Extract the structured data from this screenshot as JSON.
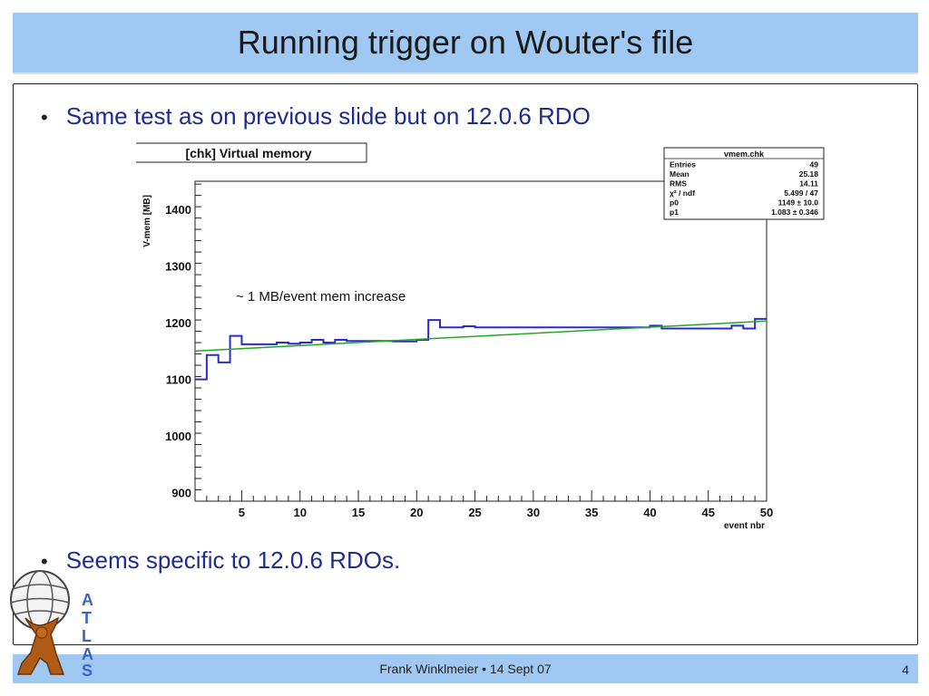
{
  "slide": {
    "title": "Running trigger on Wouter's file",
    "bullets": [
      "Same test as on previous slide but on 12.0.6 RDO",
      "Seems specific to 12.0.6 RDOs."
    ],
    "footer": "Frank Winklmeier • 14 Sept 07",
    "page_number": "4",
    "logo_text": "ATLAS"
  },
  "chart_data": {
    "type": "line",
    "title": "[chk] Virtual memory",
    "xlabel": "event nbr",
    "ylabel": "V-mem [MB]",
    "xlim": [
      1,
      50
    ],
    "ylim": [
      885,
      1450
    ],
    "xticks": [
      5,
      10,
      15,
      20,
      25,
      30,
      35,
      40,
      45,
      50
    ],
    "yticks": [
      900,
      1000,
      1100,
      1200,
      1300,
      1400
    ],
    "annotation": "~ 1 MB/event mem increase",
    "series": [
      {
        "kind": "step",
        "color": "#2b2bd6",
        "x": [
          1,
          2,
          3,
          4,
          5,
          6,
          7,
          8,
          9,
          10,
          11,
          12,
          13,
          14,
          15,
          16,
          17,
          18,
          19,
          20,
          21,
          22,
          23,
          24,
          25,
          26,
          27,
          28,
          29,
          30,
          31,
          32,
          33,
          34,
          35,
          36,
          37,
          38,
          39,
          40,
          41,
          42,
          43,
          44,
          45,
          46,
          47,
          48,
          49,
          50
        ],
        "values": [
          1100,
          1143,
          1130,
          1177,
          1162,
          1162,
          1162,
          1165,
          1163,
          1165,
          1170,
          1165,
          1170,
          1168,
          1168,
          1168,
          1168,
          1167,
          1167,
          1170,
          1205,
          1192,
          1192,
          1194,
          1192,
          1192,
          1192,
          1192,
          1192,
          1192,
          1192,
          1192,
          1192,
          1192,
          1192,
          1192,
          1192,
          1192,
          1192,
          1195,
          1190,
          1190,
          1190,
          1190,
          1190,
          1190,
          1195,
          1190,
          1207,
          1207
        ]
      },
      {
        "kind": "fit",
        "color": "#22a822",
        "x": [
          1,
          50
        ],
        "values": [
          1150.1,
          1203.1
        ]
      }
    ],
    "stats": {
      "name": "vmem.chk",
      "rows": [
        {
          "label": "Entries",
          "value": "49"
        },
        {
          "label": "Mean",
          "value": "25.18"
        },
        {
          "label": "RMS",
          "value": "14.11"
        },
        {
          "label": "χ² / ndf",
          "value": "5.499 / 47"
        },
        {
          "label": "p0",
          "value": "1149 ± 10.0"
        },
        {
          "label": "p1",
          "value": "1.083 ± 0.346"
        }
      ]
    }
  }
}
